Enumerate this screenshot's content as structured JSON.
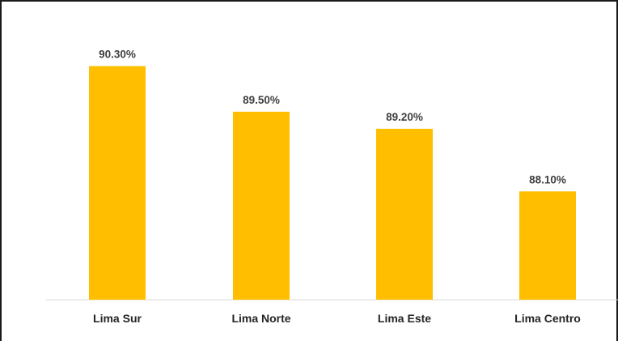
{
  "chart_data": {
    "type": "bar",
    "categories": [
      "Lima Sur",
      "Lima Norte",
      "Lima Este",
      "Lima Centro"
    ],
    "values": [
      90.3,
      89.5,
      89.2,
      88.1
    ],
    "data_labels": [
      "90.30%",
      "89.50%",
      "89.20%",
      "88.10%"
    ],
    "title": "",
    "xlabel": "",
    "ylabel": "",
    "ylim": [
      86.2,
      90.55
    ],
    "grid": false,
    "legend": "none"
  },
  "colors": {
    "bar": "#FFBF00",
    "value_label": "#404040",
    "category_label": "#252525",
    "axis_line": "#d9d9d9",
    "frame_border": "#1a1a1a"
  }
}
